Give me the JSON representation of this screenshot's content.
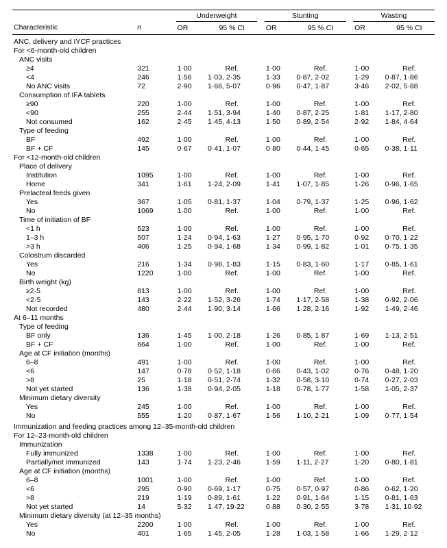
{
  "headers": {
    "characteristic": "Characteristic",
    "n": "n",
    "underweight": "Underweight",
    "stunting": "Stunting",
    "wasting": "Wasting",
    "or": "OR",
    "ci": "95 % CI"
  },
  "sections": [
    {
      "title": "ANC, delivery and IYCF practices",
      "groups": [
        {
          "title": "For <6-month-old children",
          "subgroups": [
            {
              "title": "ANC visits",
              "rows": [
                {
                  "label": "≥4",
                  "n": "321",
                  "uw_or": "1·00",
                  "uw_ci": "Ref.",
                  "st_or": "1·00",
                  "st_ci": "Ref.",
                  "wa_or": "1·00",
                  "wa_ci": "Ref."
                },
                {
                  "label": "<4",
                  "n": "246",
                  "uw_or": "1·56",
                  "uw_ci": "1·03, 2·35",
                  "st_or": "1·33",
                  "st_ci": "0·87, 2·02",
                  "wa_or": "1·29",
                  "wa_ci": "0·87, 1·86"
                },
                {
                  "label": "No ANC visits",
                  "n": "72",
                  "uw_or": "2·90",
                  "uw_ci": "1·66, 5·07",
                  "st_or": "0·96",
                  "st_ci": "0·47, 1·87",
                  "wa_or": "3·46",
                  "wa_ci": "2·02, 5·88"
                }
              ]
            },
            {
              "title": "Consumption of IFA tablets",
              "rows": [
                {
                  "label": "≥90",
                  "n": "220",
                  "uw_or": "1·00",
                  "uw_ci": "Ref.",
                  "st_or": "1·00",
                  "st_ci": "Ref.",
                  "wa_or": "1·00",
                  "wa_ci": "Ref."
                },
                {
                  "label": "<90",
                  "n": "255",
                  "uw_or": "2·44",
                  "uw_ci": "1·51, 3·94",
                  "st_or": "1·40",
                  "st_ci": "0·87, 2·25",
                  "wa_or": "1·81",
                  "wa_ci": "1·17, 2·80"
                },
                {
                  "label": "Not consumed",
                  "n": "162",
                  "uw_or": "2·45",
                  "uw_ci": "1·45, 4·13",
                  "st_or": "1·50",
                  "st_ci": "0·89, 2·54",
                  "wa_or": "2·92",
                  "wa_ci": "1·84, 4·64"
                }
              ]
            },
            {
              "title": "Type of feeding",
              "rows": [
                {
                  "label": "BF",
                  "n": "492",
                  "uw_or": "1·00",
                  "uw_ci": "Ref.",
                  "st_or": "1·00",
                  "st_ci": "Ref.",
                  "wa_or": "1·00",
                  "wa_ci": "Ref."
                },
                {
                  "label": "BF + CF",
                  "n": "145",
                  "uw_or": "0·67",
                  "uw_ci": "0·41, 1·07",
                  "st_or": "0·80",
                  "st_ci": "0·44, 1·45",
                  "wa_or": "0·65",
                  "wa_ci": "0·38, 1·11"
                }
              ]
            }
          ]
        },
        {
          "title": "For <12-month-old children",
          "subgroups": [
            {
              "title": "Place of delivery",
              "rows": [
                {
                  "label": "Institution",
                  "n": "1095",
                  "uw_or": "1·00",
                  "uw_ci": "Ref.",
                  "st_or": "1·00",
                  "st_ci": "Ref.",
                  "wa_or": "1·00",
                  "wa_ci": "Ref."
                },
                {
                  "label": "Home",
                  "n": "341",
                  "uw_or": "1·61",
                  "uw_ci": "1·24, 2·09",
                  "st_or": "1·41",
                  "st_ci": "1·07, 1·85",
                  "wa_or": "1·26",
                  "wa_ci": "0·96, 1·65"
                }
              ]
            },
            {
              "title": "Prelacteal feeds given",
              "rows": [
                {
                  "label": "Yes",
                  "n": "367",
                  "uw_or": "1·05",
                  "uw_ci": "0·81, 1·37",
                  "st_or": "1·04",
                  "st_ci": "0·79, 1·37",
                  "wa_or": "1·25",
                  "wa_ci": "0·96, 1·62"
                },
                {
                  "label": "No",
                  "n": "1069",
                  "uw_or": "1·00",
                  "uw_ci": "Ref.",
                  "st_or": "1·00",
                  "st_ci": "Ref.",
                  "wa_or": "1·00",
                  "wa_ci": "Ref."
                }
              ]
            },
            {
              "title": "Time of initiation of BF",
              "rows": [
                {
                  "label": "<1 h",
                  "n": "523",
                  "uw_or": "1·00",
                  "uw_ci": "Ref.",
                  "st_or": "1·00",
                  "st_ci": "Ref.",
                  "wa_or": "1·00",
                  "wa_ci": "Ref."
                },
                {
                  "label": "1–3 h",
                  "n": "507",
                  "uw_or": "1·24",
                  "uw_ci": "0·94, 1·63",
                  "st_or": "1·27",
                  "st_ci": "0·95, 1·70",
                  "wa_or": "0·92",
                  "wa_ci": "0·70, 1·22"
                },
                {
                  "label": ">3 h",
                  "n": "406",
                  "uw_or": "1·25",
                  "uw_ci": "0·94, 1·68",
                  "st_or": "1·34",
                  "st_ci": "0·99, 1·82",
                  "wa_or": "1·01",
                  "wa_ci": "0·75, 1·35"
                }
              ]
            },
            {
              "title": "Colostrum discarded",
              "rows": [
                {
                  "label": "Yes",
                  "n": "216",
                  "uw_or": "1·34",
                  "uw_ci": "0·98, 1·83",
                  "st_or": "1·15",
                  "st_ci": "0·83, 1·60",
                  "wa_or": "1·17",
                  "wa_ci": "0·85, 1·61"
                },
                {
                  "label": "No",
                  "n": "1220",
                  "uw_or": "1·00",
                  "uw_ci": "Ref.",
                  "st_or": "1·00",
                  "st_ci": "Ref.",
                  "wa_or": "1·00",
                  "wa_ci": "Ref."
                }
              ]
            },
            {
              "title": "Birth weight (kg)",
              "rows": [
                {
                  "label": "≥2·5",
                  "n": "813",
                  "uw_or": "1·00",
                  "uw_ci": "Ref.",
                  "st_or": "1·00",
                  "st_ci": "Ref.",
                  "wa_or": "1·00",
                  "wa_ci": "Ref."
                },
                {
                  "label": "<2·5",
                  "n": "143",
                  "uw_or": "2·22",
                  "uw_ci": "1·52, 3·26",
                  "st_or": "1·74",
                  "st_ci": "1·17, 2·58",
                  "wa_or": "1·38",
                  "wa_ci": "0·92, 2·06"
                },
                {
                  "label": "Not recorded",
                  "n": "480",
                  "uw_or": "2·44",
                  "uw_ci": "1·90, 3·14",
                  "st_or": "1·66",
                  "st_ci": "1·28, 2·16",
                  "wa_or": "1·92",
                  "wa_ci": "1·49, 2·46"
                }
              ]
            }
          ]
        },
        {
          "title": "At 6–11 months",
          "subgroups": [
            {
              "title": "Type of feeding",
              "rows": [
                {
                  "label": "BF only",
                  "n": "136",
                  "uw_or": "1·45",
                  "uw_ci": "1·00, 2·18",
                  "st_or": "1·26",
                  "st_ci": "0·85, 1·87",
                  "wa_or": "1·69",
                  "wa_ci": "1·13, 2·51"
                },
                {
                  "label": "BF + CF",
                  "n": "664",
                  "uw_or": "1·00",
                  "uw_ci": "Ref.",
                  "st_or": "1·00",
                  "st_ci": "Ref.",
                  "wa_or": "1·00",
                  "wa_ci": "Ref."
                }
              ]
            },
            {
              "title": "Age at CF initiation (months)",
              "rows": [
                {
                  "label": "6–8",
                  "n": "491",
                  "uw_or": "1·00",
                  "uw_ci": "Ref.",
                  "st_or": "1·00",
                  "st_ci": "Ref.",
                  "wa_or": "1·00",
                  "wa_ci": "Ref."
                },
                {
                  "label": "<6",
                  "n": "147",
                  "uw_or": "0·78",
                  "uw_ci": "0·52, 1·18",
                  "st_or": "0·66",
                  "st_ci": "0·43, 1·02",
                  "wa_or": "0·76",
                  "wa_ci": "0·48, 1·20"
                },
                {
                  "label": ">8",
                  "n": "25",
                  "uw_or": "1·18",
                  "uw_ci": "0·51, 2·74",
                  "st_or": "1·32",
                  "st_ci": "0·58, 3·10",
                  "wa_or": "0·74",
                  "wa_ci": "0·27, 2·03"
                },
                {
                  "label": "Not yet started",
                  "n": "136",
                  "uw_or": "1·38",
                  "uw_ci": "0·94, 2·05",
                  "st_or": "1·18",
                  "st_ci": "0·78, 1·77",
                  "wa_or": "1·58",
                  "wa_ci": "1·05, 2·37"
                }
              ]
            },
            {
              "title": "Minimum dietary diversity",
              "rows": [
                {
                  "label": "Yes",
                  "n": "245",
                  "uw_or": "1·00",
                  "uw_ci": "Ref.",
                  "st_or": "1·00",
                  "st_ci": "Ref.",
                  "wa_or": "1·00",
                  "wa_ci": "Ref."
                },
                {
                  "label": "No",
                  "n": "555",
                  "uw_or": "1·20",
                  "uw_ci": "0·87, 1·67",
                  "st_or": "1·56",
                  "st_ci": "1·10, 2·21",
                  "wa_or": "1·09",
                  "wa_ci": "0·77, 1·54"
                }
              ]
            }
          ]
        }
      ]
    },
    {
      "title": "Immunization and feeding practices among 12–35-month-old children",
      "groups": [
        {
          "title": "For 12–23-month-old children",
          "subgroups": [
            {
              "title": "Immunization",
              "rows": [
                {
                  "label": "Fully immunized",
                  "n": "1338",
                  "uw_or": "1·00",
                  "uw_ci": "Ref.",
                  "st_or": "1·00",
                  "st_ci": "Ref.",
                  "wa_or": "1·00",
                  "wa_ci": "Ref."
                },
                {
                  "label": "Partially/not immunized",
                  "n": "143",
                  "uw_or": "1·74",
                  "uw_ci": "1·23, 2·46",
                  "st_or": "1·59",
                  "st_ci": "1·11, 2·27",
                  "wa_or": "1·20",
                  "wa_ci": "0·80, 1·81"
                }
              ]
            },
            {
              "title": "Age at CF initiation (months)",
              "rows": [
                {
                  "label": "6–8",
                  "n": "1001",
                  "uw_or": "1·00",
                  "uw_ci": "Ref.",
                  "st_or": "1·00",
                  "st_ci": "Ref.",
                  "wa_or": "1·00",
                  "wa_ci": "Ref."
                },
                {
                  "label": "<6",
                  "n": "295",
                  "uw_or": "0·90",
                  "uw_ci": "0·69, 1·17",
                  "st_or": "0·75",
                  "st_ci": "0·57, 0·97",
                  "wa_or": "0·86",
                  "wa_ci": "0·62, 1·20"
                },
                {
                  "label": ">8",
                  "n": "219",
                  "uw_or": "1·19",
                  "uw_ci": "0·89, 1·61",
                  "st_or": "1·22",
                  "st_ci": "0·91, 1·64",
                  "wa_or": "1·15",
                  "wa_ci": "0·81, 1·63"
                },
                {
                  "label": "Not yet started",
                  "n": "14",
                  "uw_or": "5·32",
                  "uw_ci": "1·47, 19·22",
                  "st_or": "0·88",
                  "st_ci": "0·30, 2·55",
                  "wa_or": "3·78",
                  "wa_ci": "1·31, 10·92"
                }
              ]
            },
            {
              "title": "Minimum dietary diversity (at 12–35 months)",
              "rows": [
                {
                  "label": "Yes",
                  "n": "2200",
                  "uw_or": "1·00",
                  "uw_ci": "Ref.",
                  "st_or": "1·00",
                  "st_ci": "Ref.",
                  "wa_or": "1·00",
                  "wa_ci": "Ref."
                },
                {
                  "label": "No",
                  "n": "401",
                  "uw_or": "1·65",
                  "uw_ci": "1·45, 2·05",
                  "st_or": "1·28",
                  "st_ci": "1·03, 1·58",
                  "wa_or": "1·66",
                  "wa_ci": "1·29, 2·12"
                }
              ]
            }
          ]
        }
      ]
    }
  ]
}
